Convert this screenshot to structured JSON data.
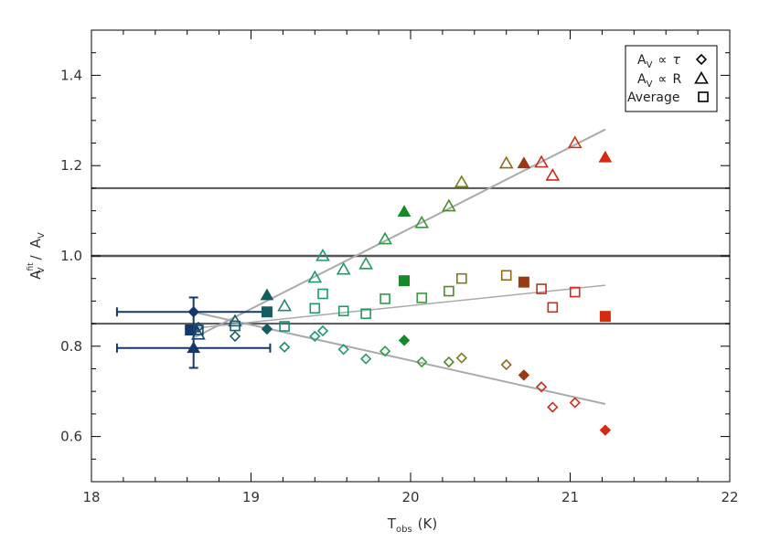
{
  "chart_data": {
    "type": "scatter",
    "xlabel": {
      "main": "T",
      "sub": "obs",
      "unit": "(K)"
    },
    "ylabel": {
      "main": "A",
      "sup": "fit",
      "sub": "V",
      "sep": "/",
      "main2": "A",
      "sub2": "V"
    },
    "xlim": [
      18,
      22
    ],
    "ylim": [
      0.5,
      1.5
    ],
    "xticks": [
      "18",
      "19",
      "20",
      "21",
      "22"
    ],
    "yticks": [
      "0.6",
      "0.8",
      "1.0",
      "1.2",
      "1.4"
    ],
    "xtick_values": [
      18,
      19,
      20,
      21,
      22
    ],
    "ytick_values": [
      0.6,
      0.8,
      1.0,
      1.2,
      1.4
    ],
    "xminor_step": 0.2,
    "yminor_step": 0.05,
    "grid": false,
    "legend_position": "top-right",
    "legend": [
      {
        "label_main": "A",
        "label_sub": "V",
        "label_rel": "∝",
        "label_var": "τ",
        "marker": "diamond"
      },
      {
        "label_main": "A",
        "label_sub": "V",
        "label_rel": "∝",
        "label_var": "R",
        "marker": "triangle"
      },
      {
        "label_main": "Average",
        "marker": "square"
      }
    ],
    "hlines": [
      {
        "y": 1.15,
        "color": "#555555",
        "width": 2
      },
      {
        "y": 1.0,
        "color": "#555555",
        "width": 2.5
      },
      {
        "y": 0.85,
        "color": "#555555",
        "width": 2
      }
    ],
    "fit_lines": [
      {
        "series": "triangle",
        "from": [
          18.65,
          0.82
        ],
        "to": [
          21.22,
          1.28
        ],
        "color": "#aaaaaa",
        "width": 2
      },
      {
        "series": "square",
        "from": [
          18.65,
          0.84
        ],
        "to": [
          21.22,
          0.935
        ],
        "color": "#aaaaaa",
        "width": 1.5
      },
      {
        "series": "diamond",
        "from": [
          18.65,
          0.875
        ],
        "to": [
          21.22,
          0.672
        ],
        "color": "#aaaaaa",
        "width": 2
      }
    ],
    "error_bars": [
      {
        "x": 18.64,
        "y": 0.876,
        "xerr": [
          18.16,
          19.1
        ],
        "yerr": [
          0.843,
          0.908
        ],
        "color": "#14386e"
      },
      {
        "x": 18.64,
        "y": 0.796,
        "xerr": [
          18.16,
          19.12
        ],
        "yerr": [
          0.752,
          0.84
        ],
        "color": "#14386e"
      }
    ],
    "points": [
      {
        "series": "diamond",
        "x": 18.64,
        "y": 0.876,
        "filled": true,
        "color": "#14386e"
      },
      {
        "series": "square",
        "x": 18.62,
        "y": 0.836,
        "filled": true,
        "color": "#14386e"
      },
      {
        "series": "triangle",
        "x": 18.64,
        "y": 0.796,
        "filled": true,
        "color": "#14386e"
      },
      {
        "series": "diamond",
        "x": 18.67,
        "y": 0.842,
        "filled": false,
        "color": "#14486e"
      },
      {
        "series": "triangle",
        "x": 18.67,
        "y": 0.826,
        "filled": false,
        "color": "#14486e"
      },
      {
        "series": "square",
        "x": 18.67,
        "y": 0.836,
        "filled": false,
        "color": "#14486e"
      },
      {
        "series": "diamond",
        "x": 18.9,
        "y": 0.822,
        "filled": false,
        "color": "#1a5c6e"
      },
      {
        "series": "triangle",
        "x": 18.9,
        "y": 0.855,
        "filled": false,
        "color": "#1a5c6e"
      },
      {
        "series": "square",
        "x": 18.9,
        "y": 0.845,
        "filled": false,
        "color": "#1a5c6e"
      },
      {
        "series": "diamond",
        "x": 19.1,
        "y": 0.838,
        "filled": true,
        "color": "#145e62"
      },
      {
        "series": "triangle",
        "x": 19.1,
        "y": 0.913,
        "filled": true,
        "color": "#145e62"
      },
      {
        "series": "square",
        "x": 19.1,
        "y": 0.876,
        "filled": true,
        "color": "#145e62"
      },
      {
        "series": "diamond",
        "x": 19.21,
        "y": 0.798,
        "filled": false,
        "color": "#1f8a72"
      },
      {
        "series": "triangle",
        "x": 19.21,
        "y": 0.889,
        "filled": false,
        "color": "#1f8a72"
      },
      {
        "series": "square",
        "x": 19.21,
        "y": 0.844,
        "filled": false,
        "color": "#1f8a72"
      },
      {
        "series": "diamond",
        "x": 19.4,
        "y": 0.822,
        "filled": false,
        "color": "#1c9970"
      },
      {
        "series": "triangle",
        "x": 19.4,
        "y": 0.952,
        "filled": false,
        "color": "#1c9970"
      },
      {
        "series": "square",
        "x": 19.4,
        "y": 0.884,
        "filled": false,
        "color": "#1c9970"
      },
      {
        "series": "diamond",
        "x": 19.45,
        "y": 0.834,
        "filled": false,
        "color": "#1c9970"
      },
      {
        "series": "triangle",
        "x": 19.45,
        "y": 1.0,
        "filled": false,
        "color": "#1c9970"
      },
      {
        "series": "square",
        "x": 19.45,
        "y": 0.916,
        "filled": false,
        "color": "#1c9970"
      },
      {
        "series": "diamond",
        "x": 19.58,
        "y": 0.793,
        "filled": false,
        "color": "#1f9a66"
      },
      {
        "series": "triangle",
        "x": 19.58,
        "y": 0.97,
        "filled": false,
        "color": "#1f9a66"
      },
      {
        "series": "square",
        "x": 19.58,
        "y": 0.878,
        "filled": false,
        "color": "#1f9a66"
      },
      {
        "series": "diamond",
        "x": 19.72,
        "y": 0.772,
        "filled": false,
        "color": "#239a5a"
      },
      {
        "series": "triangle",
        "x": 19.72,
        "y": 0.982,
        "filled": false,
        "color": "#239a5a"
      },
      {
        "series": "square",
        "x": 19.72,
        "y": 0.872,
        "filled": false,
        "color": "#239a5a"
      },
      {
        "series": "diamond",
        "x": 19.84,
        "y": 0.789,
        "filled": false,
        "color": "#2a9a46"
      },
      {
        "series": "triangle",
        "x": 19.84,
        "y": 1.037,
        "filled": false,
        "color": "#2a9a46"
      },
      {
        "series": "square",
        "x": 19.84,
        "y": 0.905,
        "filled": false,
        "color": "#2a9a46"
      },
      {
        "series": "diamond",
        "x": 19.96,
        "y": 0.813,
        "filled": true,
        "color": "#178a28"
      },
      {
        "series": "triangle",
        "x": 19.96,
        "y": 1.098,
        "filled": true,
        "color": "#178a28"
      },
      {
        "series": "square",
        "x": 19.96,
        "y": 0.945,
        "filled": true,
        "color": "#178a28"
      },
      {
        "series": "diamond",
        "x": 20.07,
        "y": 0.765,
        "filled": false,
        "color": "#3a9a3a"
      },
      {
        "series": "triangle",
        "x": 20.07,
        "y": 1.073,
        "filled": false,
        "color": "#3a9a3a"
      },
      {
        "series": "square",
        "x": 20.07,
        "y": 0.907,
        "filled": false,
        "color": "#3a9a3a"
      },
      {
        "series": "diamond",
        "x": 20.24,
        "y": 0.765,
        "filled": false,
        "color": "#4f8a2a"
      },
      {
        "series": "triangle",
        "x": 20.24,
        "y": 1.11,
        "filled": false,
        "color": "#4f8a2a"
      },
      {
        "series": "square",
        "x": 20.24,
        "y": 0.922,
        "filled": false,
        "color": "#4f8a2a"
      },
      {
        "series": "diamond",
        "x": 20.32,
        "y": 0.774,
        "filled": false,
        "color": "#7a7a1e"
      },
      {
        "series": "triangle",
        "x": 20.32,
        "y": 1.163,
        "filled": false,
        "color": "#7a7a1e"
      },
      {
        "series": "square",
        "x": 20.32,
        "y": 0.95,
        "filled": false,
        "color": "#7a7a1e"
      },
      {
        "series": "diamond",
        "x": 20.6,
        "y": 0.759,
        "filled": false,
        "color": "#8a6a1e"
      },
      {
        "series": "triangle",
        "x": 20.6,
        "y": 1.205,
        "filled": false,
        "color": "#8a6a1e"
      },
      {
        "series": "square",
        "x": 20.6,
        "y": 0.957,
        "filled": false,
        "color": "#8a6a1e"
      },
      {
        "series": "diamond",
        "x": 20.71,
        "y": 0.736,
        "filled": true,
        "color": "#9a3a14"
      },
      {
        "series": "triangle",
        "x": 20.71,
        "y": 1.205,
        "filled": true,
        "color": "#9a3a14"
      },
      {
        "series": "square",
        "x": 20.71,
        "y": 0.942,
        "filled": true,
        "color": "#9a3a14"
      },
      {
        "series": "diamond",
        "x": 20.82,
        "y": 0.71,
        "filled": false,
        "color": "#c22d1f"
      },
      {
        "series": "triangle",
        "x": 20.82,
        "y": 1.207,
        "filled": false,
        "color": "#c22d1f"
      },
      {
        "series": "square",
        "x": 20.82,
        "y": 0.927,
        "filled": false,
        "color": "#c22d1f"
      },
      {
        "series": "diamond",
        "x": 20.89,
        "y": 0.665,
        "filled": false,
        "color": "#d12a1a"
      },
      {
        "series": "triangle",
        "x": 20.89,
        "y": 1.178,
        "filled": false,
        "color": "#d12a1a"
      },
      {
        "series": "square",
        "x": 20.89,
        "y": 0.886,
        "filled": false,
        "color": "#d12a1a"
      },
      {
        "series": "diamond",
        "x": 21.03,
        "y": 0.675,
        "filled": false,
        "color": "#d82a1a"
      },
      {
        "series": "triangle",
        "x": 21.03,
        "y": 1.25,
        "filled": false,
        "color": "#d82a1a"
      },
      {
        "series": "square",
        "x": 21.03,
        "y": 0.92,
        "filled": false,
        "color": "#d82a1a"
      },
      {
        "series": "diamond",
        "x": 21.22,
        "y": 0.614,
        "filled": true,
        "color": "#d42a10"
      },
      {
        "series": "triangle",
        "x": 21.22,
        "y": 1.218,
        "filled": true,
        "color": "#d42a10"
      },
      {
        "series": "square",
        "x": 21.22,
        "y": 0.866,
        "filled": true,
        "color": "#d42a10"
      }
    ]
  }
}
